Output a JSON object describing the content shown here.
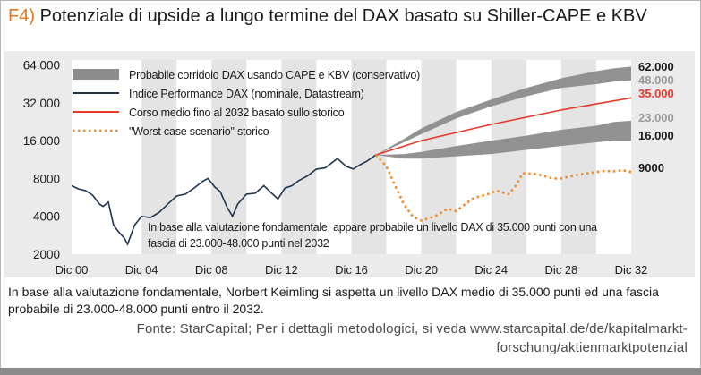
{
  "header": {
    "tag": "F4)",
    "title": "Potenziale di upside a lungo termine del DAX basato su Shiller-CAPE e KBV"
  },
  "caption": "In base alla valutazione fondamentale, Norbert Keimling si aspetta un livello DAX medio di 35.000 punti ed una fascia probabile di 23.000-48.000 punti entro il 2032.",
  "source": "Fonte: StarCapital; Per i dettagli metodologici, si veda www.starcapital.de/de/kapitalmarkt-forschung/aktienmarktpotenzial",
  "colors": {
    "accent": "#e07a1e",
    "dax_line": "#1f3550",
    "mean_line": "#e8392c",
    "worst_case": "#f08a24",
    "corridor": "#8c8c8c",
    "chart_bg": "#ebebeb"
  },
  "chart_data": {
    "type": "line",
    "y_scale": "log",
    "ylim": [
      2000,
      70000
    ],
    "xlim": [
      2000,
      2032
    ],
    "y_ticks": [
      "2000",
      "4000",
      "8000",
      "16.000",
      "32.000",
      "64.000"
    ],
    "y_tick_values": [
      2000,
      4000,
      8000,
      16000,
      32000,
      64000
    ],
    "x_ticks": [
      "Dic 00",
      "Dic 04",
      "Dic 08",
      "Dic 12",
      "Dic 16",
      "Dic 20",
      "Dic 24",
      "Dic 28",
      "Dic 32"
    ],
    "x_tick_values": [
      2000,
      2004,
      2008,
      2012,
      2016,
      2020,
      2024,
      2028,
      2032
    ],
    "shaded_bands": [
      [
        2004,
        2006
      ],
      [
        2008,
        2010
      ],
      [
        2012,
        2014
      ],
      [
        2016,
        2018
      ],
      [
        2020,
        2022
      ],
      [
        2024,
        2026
      ],
      [
        2028,
        2030
      ]
    ],
    "legend": [
      "Probabile corridoio DAX usando CAPE e KBV (conservativo)",
      "Indice Performance DAX (nominale, Datastream)",
      "Corso medio fino al 2032 basato sullo storico",
      "\"Worst case scenario\" storico"
    ],
    "legend_placement": "top-left",
    "annotation": [
      "In base alla valutazione fondamentale, appare probabile un livello DAX di 35.000 punti con una",
      "fascia di 23.000-48.000 punti nel 2032"
    ],
    "end_labels": [
      {
        "text": "62.000",
        "value": 62000
      },
      {
        "text": "48.000",
        "value": 48000
      },
      {
        "text": "35.000",
        "value": 35000
      },
      {
        "text": "23.000",
        "value": 23000
      },
      {
        "text": "16.000",
        "value": 16000
      },
      {
        "text": "9000",
        "value": 9000
      }
    ],
    "series": [
      {
        "name": "Indice Performance DAX (nominale, Datastream)",
        "x": [
          2000.0,
          2000.4,
          2000.8,
          2001.2,
          2001.6,
          2001.8,
          2002.1,
          2002.4,
          2002.7,
          2003.0,
          2003.2,
          2003.6,
          2004.0,
          2004.5,
          2005.0,
          2005.5,
          2006.0,
          2006.5,
          2007.0,
          2007.5,
          2007.8,
          2008.2,
          2008.5,
          2008.9,
          2009.2,
          2009.5,
          2010.0,
          2010.5,
          2011.0,
          2011.5,
          2011.8,
          2012.2,
          2012.6,
          2013.0,
          2013.5,
          2014.0,
          2014.5,
          2015.2,
          2015.7,
          2016.1,
          2016.5,
          2016.9,
          2017.4
        ],
        "values": [
          7000,
          6600,
          6400,
          5900,
          5000,
          4800,
          5200,
          3400,
          3000,
          2700,
          2400,
          3400,
          4000,
          3900,
          4300,
          5000,
          5800,
          6000,
          6700,
          7600,
          8000,
          6800,
          6300,
          4700,
          4000,
          5000,
          6000,
          6100,
          7000,
          6000,
          5500,
          6700,
          7000,
          7700,
          8400,
          9500,
          9700,
          11500,
          10000,
          9500,
          10300,
          11000,
          12300
        ]
      },
      {
        "name": "Corso medio fino al 2032 basato sullo storico",
        "x": [
          2017.4,
          2020,
          2024,
          2028,
          2032
        ],
        "values": [
          12300,
          16000,
          21500,
          28000,
          35000
        ]
      },
      {
        "name": "\"Worst case scenario\" storico",
        "x": [
          2017.4,
          2018.0,
          2018.5,
          2019.0,
          2019.5,
          2020.0,
          2020.8,
          2021.5,
          2022.0,
          2022.5,
          2023.0,
          2023.8,
          2024.3,
          2025.0,
          2025.4,
          2025.8,
          2026.5,
          2027.0,
          2027.5,
          2028.0,
          2029.0,
          2030.0,
          2030.5,
          2031.0,
          2031.5,
          2032.0
        ],
        "values": [
          12300,
          10000,
          7000,
          5000,
          4000,
          3700,
          4000,
          4600,
          4400,
          5000,
          5600,
          6000,
          6400,
          6000,
          7000,
          8800,
          8700,
          8400,
          8000,
          8000,
          8600,
          9000,
          9200,
          9100,
          9300,
          9000
        ]
      },
      {
        "name": "Probabile corridoio DAX usando CAPE e KBV (conservativo)",
        "type": "band",
        "x": [
          2017.4,
          2019,
          2020,
          2022,
          2024,
          2026,
          2028,
          2030,
          2031,
          2032
        ],
        "upper": [
          12300,
          16500,
          20000,
          27000,
          34000,
          42000,
          50000,
          57000,
          60000,
          62000
        ],
        "upper_inner": [
          12300,
          15500,
          18000,
          24000,
          30000,
          36000,
          42000,
          45000,
          47000,
          48000
        ],
        "lower_inner": [
          12300,
          12500,
          13000,
          14500,
          16000,
          17500,
          19500,
          21000,
          22500,
          23000
        ],
        "lower": [
          12300,
          11500,
          11500,
          12000,
          12500,
          13500,
          14500,
          15500,
          16000,
          16000
        ]
      }
    ]
  }
}
